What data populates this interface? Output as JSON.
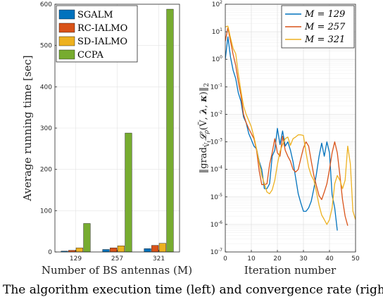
{
  "caption": "The algorithm execution time (left) and convergence rate (righ",
  "chart_data": [
    {
      "type": "bar",
      "xlabel": "Number of BS antennas (M)",
      "ylabel": "Average running time [sec]",
      "categories": [
        "129",
        "257",
        "321"
      ],
      "ylim": [
        0,
        600
      ],
      "yticks": [
        0,
        100,
        200,
        300,
        400,
        500,
        600
      ],
      "grid": true,
      "legend": "top-left",
      "series": [
        {
          "name": "SGALM",
          "color": "#0072BD",
          "values": [
            2,
            6,
            8
          ]
        },
        {
          "name": "RC-IALMO",
          "color": "#D95319",
          "values": [
            4,
            10,
            16
          ]
        },
        {
          "name": "SD-IALMO",
          "color": "#EDB120",
          "values": [
            10,
            15,
            21
          ]
        },
        {
          "name": "CCPA",
          "color": "#77AC30",
          "values": [
            69,
            288,
            588
          ]
        }
      ]
    },
    {
      "type": "line",
      "xlabel": "Iteration number",
      "ylabel": "‖grad_{Ṽ_t} 𝓛_ρ(Ṽ, λ, κ)‖₂",
      "xlim": [
        0,
        50
      ],
      "xticks": [
        0,
        10,
        20,
        30,
        40,
        50
      ],
      "ylim": [
        1e-07,
        100
      ],
      "yscale": "log",
      "ytick_exponents": [
        -7,
        -6,
        -5,
        -4,
        -3,
        -2,
        -1,
        0,
        1,
        2
      ],
      "grid": true,
      "legend": "top-right",
      "legend_labels": [
        "M = 129",
        "M = 257",
        "M = 321"
      ],
      "series": [
        {
          "name": "M = 129",
          "color": "#0072BD",
          "x": [
            0,
            1,
            2,
            3,
            4,
            5,
            6,
            7,
            8,
            9,
            10,
            11,
            12,
            13,
            14,
            15,
            16,
            17,
            18,
            19,
            20,
            21,
            22,
            23,
            24,
            25,
            26,
            27,
            28,
            29,
            30,
            31,
            32,
            33,
            34,
            35,
            36,
            37,
            38,
            39,
            40,
            41,
            42,
            43
          ],
          "y": [
            1.0,
            6.5,
            1.2,
            0.4,
            0.2,
            0.06,
            0.03,
            0.008,
            0.005,
            0.002,
            0.0012,
            0.0007,
            0.00055,
            0.0002,
            0.0001,
            2e-05,
            2e-05,
            3e-05,
            0.0003,
            0.0005,
            0.0031,
            0.0008,
            0.0025,
            0.0007,
            0.001,
            0.0005,
            0.00019,
            5e-05,
            1.3e-05,
            6e-06,
            3e-06,
            3e-06,
            4e-06,
            7e-06,
            2e-05,
            7e-05,
            0.0003,
            0.0009,
            0.0003,
            0.001,
            0.0004,
            1.2e-05,
            4e-06,
            6e-07
          ]
        },
        {
          "name": "M = 257",
          "color": "#D95319",
          "x": [
            0,
            1,
            2,
            3,
            4,
            5,
            6,
            7,
            8,
            9,
            10,
            11,
            12,
            13,
            14,
            15,
            16,
            17,
            18,
            19,
            20,
            21,
            22,
            23,
            24,
            25,
            26,
            27,
            28,
            29,
            30,
            31,
            32,
            33,
            34,
            35,
            36,
            37,
            38,
            39,
            40,
            41,
            42,
            43,
            44,
            45,
            46,
            47
          ],
          "y": [
            4.5,
            14,
            4.5,
            1.5,
            0.6,
            0.15,
            0.05,
            0.01,
            0.005,
            0.003,
            0.002,
            0.0013,
            0.0005,
            9e-05,
            2.8e-05,
            2.8e-05,
            3e-05,
            0.00015,
            0.0004,
            0.0013,
            0.0004,
            0.0003,
            0.0016,
            0.0005,
            0.0003,
            0.0002,
            0.0001,
            8e-05,
            0.0001,
            0.00025,
            0.0006,
            0.001,
            0.0007,
            0.0002,
            6e-05,
            2.5e-05,
            1.1e-05,
            8e-06,
            1.5e-05,
            3e-05,
            0.0001,
            0.0004,
            0.001,
            0.0004,
            6e-05,
            8e-06,
            2e-06,
            9e-07
          ]
        },
        {
          "name": "M = 321",
          "color": "#EDB120",
          "x": [
            0,
            1,
            2,
            3,
            4,
            5,
            6,
            7,
            8,
            9,
            10,
            11,
            12,
            13,
            14,
            15,
            16,
            17,
            18,
            19,
            20,
            21,
            22,
            23,
            24,
            25,
            26,
            27,
            28,
            29,
            30,
            31,
            32,
            33,
            34,
            35,
            36,
            37,
            38,
            39,
            40,
            41,
            42,
            43,
            44,
            45,
            46,
            47,
            48,
            49,
            50
          ],
          "y": [
            15,
            16,
            6,
            2.5,
            1.6,
            0.3,
            0.07,
            0.02,
            0.01,
            0.006,
            0.0035,
            0.0015,
            0.00055,
            0.00018,
            6e-05,
            3e-05,
            1.5e-05,
            1.3e-05,
            1.8e-05,
            4e-05,
            0.00015,
            0.00045,
            0.0008,
            0.0013,
            0.0015,
            0.00075,
            0.0013,
            0.0015,
            0.0018,
            0.0018,
            0.0017,
            0.0004,
            0.00012,
            6e-05,
            4e-05,
            1.5e-05,
            5e-06,
            2.2e-06,
            1.5e-06,
            1e-06,
            1.5e-06,
            4e-06,
            3e-05,
            6e-05,
            4e-05,
            2e-05,
            4e-05,
            0.0007,
            0.00016,
            3e-06,
            1.5e-06
          ]
        }
      ]
    }
  ]
}
